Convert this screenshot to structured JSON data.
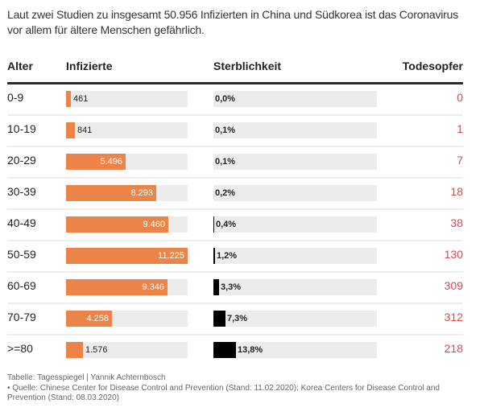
{
  "intro": "Laut zwei Studien zu insgesamt 50.956 Infizierten in China und Südkorea ist das Coronavirus vor allem für ältere Menschen gefährlich.",
  "header": {
    "alter": "Alter",
    "infizierte": "Infizierte",
    "sterblichkeit": "Sterblichkeit",
    "todesopfer": "Todesopfer"
  },
  "colors": {
    "infizierte_bar": "#ec844a",
    "sterblichkeit_bar": "#000000",
    "track": "#ececec",
    "todesopfer_text": "#e0474c"
  },
  "chart_data": {
    "type": "table",
    "title": "Laut zwei Studien zu insgesamt 50.956 Infizierten in China und Südkorea ist das Coronavirus vor allem für ältere Menschen gefährlich.",
    "columns": [
      "Alter",
      "Infizierte",
      "Sterblichkeit",
      "Todesopfer"
    ],
    "infizierte_max": 11225,
    "sterblichkeit_max_percent": 100,
    "rows": [
      {
        "alter": "0-9",
        "infizierte": 461,
        "infizierte_label": "461",
        "sterblichkeit": 0.0,
        "sterblichkeit_label": "0,0%",
        "todesopfer": 0,
        "todesopfer_label": "0"
      },
      {
        "alter": "10-19",
        "infizierte": 841,
        "infizierte_label": "841",
        "sterblichkeit": 0.1,
        "sterblichkeit_label": "0,1%",
        "todesopfer": 1,
        "todesopfer_label": "1"
      },
      {
        "alter": "20-29",
        "infizierte": 5496,
        "infizierte_label": "5.496",
        "sterblichkeit": 0.1,
        "sterblichkeit_label": "0,1%",
        "todesopfer": 7,
        "todesopfer_label": "7"
      },
      {
        "alter": "30-39",
        "infizierte": 8293,
        "infizierte_label": "8.293",
        "sterblichkeit": 0.2,
        "sterblichkeit_label": "0,2%",
        "todesopfer": 18,
        "todesopfer_label": "18"
      },
      {
        "alter": "40-49",
        "infizierte": 9460,
        "infizierte_label": "9.460",
        "sterblichkeit": 0.4,
        "sterblichkeit_label": "0,4%",
        "todesopfer": 38,
        "todesopfer_label": "38"
      },
      {
        "alter": "50-59",
        "infizierte": 11225,
        "infizierte_label": "11.225",
        "sterblichkeit": 1.2,
        "sterblichkeit_label": "1,2%",
        "todesopfer": 130,
        "todesopfer_label": "130"
      },
      {
        "alter": "60-69",
        "infizierte": 9346,
        "infizierte_label": "9.346",
        "sterblichkeit": 3.3,
        "sterblichkeit_label": "3,3%",
        "todesopfer": 309,
        "todesopfer_label": "309"
      },
      {
        "alter": "70-79",
        "infizierte": 4258,
        "infizierte_label": "4.258",
        "sterblichkeit": 7.3,
        "sterblichkeit_label": "7,3%",
        "todesopfer": 312,
        "todesopfer_label": "312"
      },
      {
        "alter": ">=80",
        "infizierte": 1576,
        "infizierte_label": "1.576",
        "sterblichkeit": 13.8,
        "sterblichkeit_label": "13,8%",
        "todesopfer": 218,
        "todesopfer_label": "218"
      }
    ]
  },
  "footer": {
    "credit": "Tabelle: Tagesspiegel | Yannik Achternbosch",
    "source": "• Quelle: Chinese Center for Disease Control and Prevention (Stand: 11.02.2020); Korea Centers for Disease Control and Prevention (Stand: 08.03.2020)"
  }
}
